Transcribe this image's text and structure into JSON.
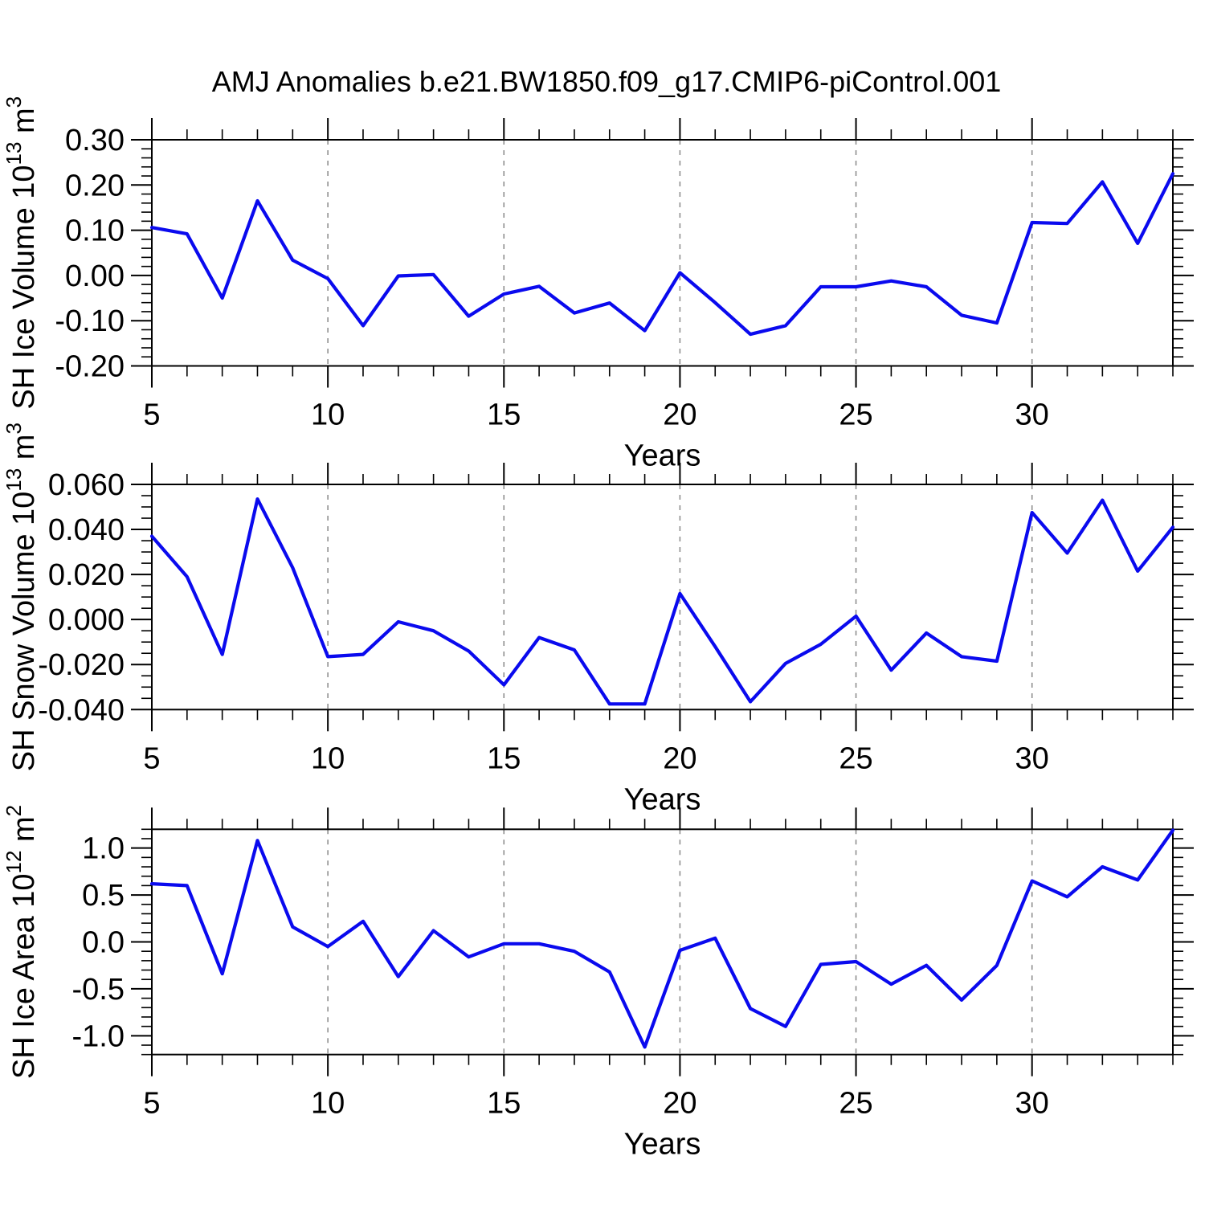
{
  "title": "AMJ Anomalies b.e21.BW1850.f09_g17.CMIP6-piControl.001",
  "style": {
    "line_color": "#0a0aee",
    "grid_color": "#888888",
    "axis_color": "#000000"
  },
  "chart_data": [
    {
      "type": "line",
      "series_name": "SH Ice Volume anomaly",
      "x": [
        5,
        6,
        7,
        8,
        9,
        10,
        11,
        12,
        13,
        14,
        15,
        16,
        17,
        18,
        19,
        20,
        21,
        22,
        23,
        24,
        25,
        26,
        27,
        28,
        29,
        30,
        31,
        32,
        33,
        34
      ],
      "values": [
        0.106,
        0.092,
        -0.05,
        0.165,
        0.034,
        -0.007,
        -0.111,
        -0.001,
        0.002,
        -0.09,
        -0.041,
        -0.024,
        -0.083,
        -0.061,
        -0.122,
        0.006,
        -0.06,
        -0.13,
        -0.111,
        -0.025,
        -0.025,
        -0.012,
        -0.025,
        -0.088,
        -0.105,
        0.117,
        0.115,
        0.207,
        0.071,
        0.225
      ],
      "xlabel": "Years",
      "ylabel": "SH Ice Volume 10^{13} m^{3}",
      "xlim": [
        5,
        34
      ],
      "ylim": [
        -0.2,
        0.3
      ],
      "xticks": [
        5,
        10,
        15,
        20,
        25,
        30
      ],
      "x_minor_step": 1,
      "yticks": [
        {
          "v": 0.3,
          "label": "0.30"
        },
        {
          "v": 0.2,
          "label": "0.20"
        },
        {
          "v": 0.1,
          "label": "0.10"
        },
        {
          "v": 0.0,
          "label": "0.00"
        },
        {
          "v": -0.1,
          "label": "-0.10"
        },
        {
          "v": -0.2,
          "label": "-0.20"
        }
      ],
      "y_minor_step": 0.02,
      "grid_x": [
        10,
        15,
        20,
        25,
        30
      ],
      "grid": "vertical-dashed",
      "legend": "none"
    },
    {
      "type": "line",
      "series_name": "SH Snow Volume anomaly",
      "x": [
        5,
        6,
        7,
        8,
        9,
        10,
        11,
        12,
        13,
        14,
        15,
        16,
        17,
        18,
        19,
        20,
        21,
        22,
        23,
        24,
        25,
        26,
        27,
        28,
        29,
        30,
        31,
        32,
        33,
        34
      ],
      "values": [
        0.037,
        0.019,
        -0.0155,
        0.0535,
        0.023,
        -0.0165,
        -0.0155,
        -0.001,
        -0.005,
        -0.014,
        -0.029,
        -0.008,
        -0.0135,
        -0.0375,
        -0.0375,
        0.0115,
        -0.012,
        -0.0365,
        -0.0195,
        -0.011,
        0.0015,
        -0.0225,
        -0.006,
        -0.0165,
        -0.0185,
        0.0475,
        0.0295,
        0.053,
        0.0215,
        0.041
      ],
      "xlabel": "Years",
      "ylabel": "SH Snow Volume 10^{13} m^{3}",
      "xlim": [
        5,
        34
      ],
      "ylim": [
        -0.04,
        0.06
      ],
      "xticks": [
        5,
        10,
        15,
        20,
        25,
        30
      ],
      "x_minor_step": 1,
      "yticks": [
        {
          "v": 0.06,
          "label": "0.060"
        },
        {
          "v": 0.04,
          "label": "0.040"
        },
        {
          "v": 0.02,
          "label": "0.020"
        },
        {
          "v": 0.0,
          "label": "0.000"
        },
        {
          "v": -0.02,
          "label": "-0.020"
        },
        {
          "v": -0.04,
          "label": "-0.040"
        }
      ],
      "y_minor_step": 0.005,
      "grid_x": [
        10,
        15,
        20,
        25,
        30
      ],
      "grid": "vertical-dashed",
      "legend": "none"
    },
    {
      "type": "line",
      "series_name": "SH Ice Area anomaly",
      "x": [
        5,
        6,
        7,
        8,
        9,
        10,
        11,
        12,
        13,
        14,
        15,
        16,
        17,
        18,
        19,
        20,
        21,
        22,
        23,
        24,
        25,
        26,
        27,
        28,
        29,
        30,
        31,
        32,
        33,
        34
      ],
      "values": [
        0.62,
        0.6,
        -0.34,
        1.08,
        0.16,
        -0.05,
        0.22,
        -0.37,
        0.12,
        -0.16,
        -0.02,
        -0.02,
        -0.1,
        -0.32,
        -1.12,
        -0.09,
        0.04,
        -0.71,
        -0.9,
        -0.24,
        -0.21,
        -0.45,
        -0.25,
        -0.62,
        -0.25,
        0.65,
        0.48,
        0.8,
        0.66,
        1.19
      ],
      "xlabel": "Years",
      "ylabel": "SH Ice Area 10^{12} m^{2}",
      "xlim": [
        5,
        34
      ],
      "ylim": [
        -1.2,
        1.2
      ],
      "xticks": [
        5,
        10,
        15,
        20,
        25,
        30
      ],
      "x_minor_step": 1,
      "yticks": [
        {
          "v": 1.0,
          "label": "1.0"
        },
        {
          "v": 0.5,
          "label": "0.5"
        },
        {
          "v": 0.0,
          "label": "0.0"
        },
        {
          "v": -0.5,
          "label": "-0.5"
        },
        {
          "v": -1.0,
          "label": "-1.0"
        }
      ],
      "y_minor_step": 0.1,
      "grid_x": [
        10,
        15,
        20,
        25,
        30
      ],
      "grid": "vertical-dashed",
      "legend": "none"
    }
  ]
}
